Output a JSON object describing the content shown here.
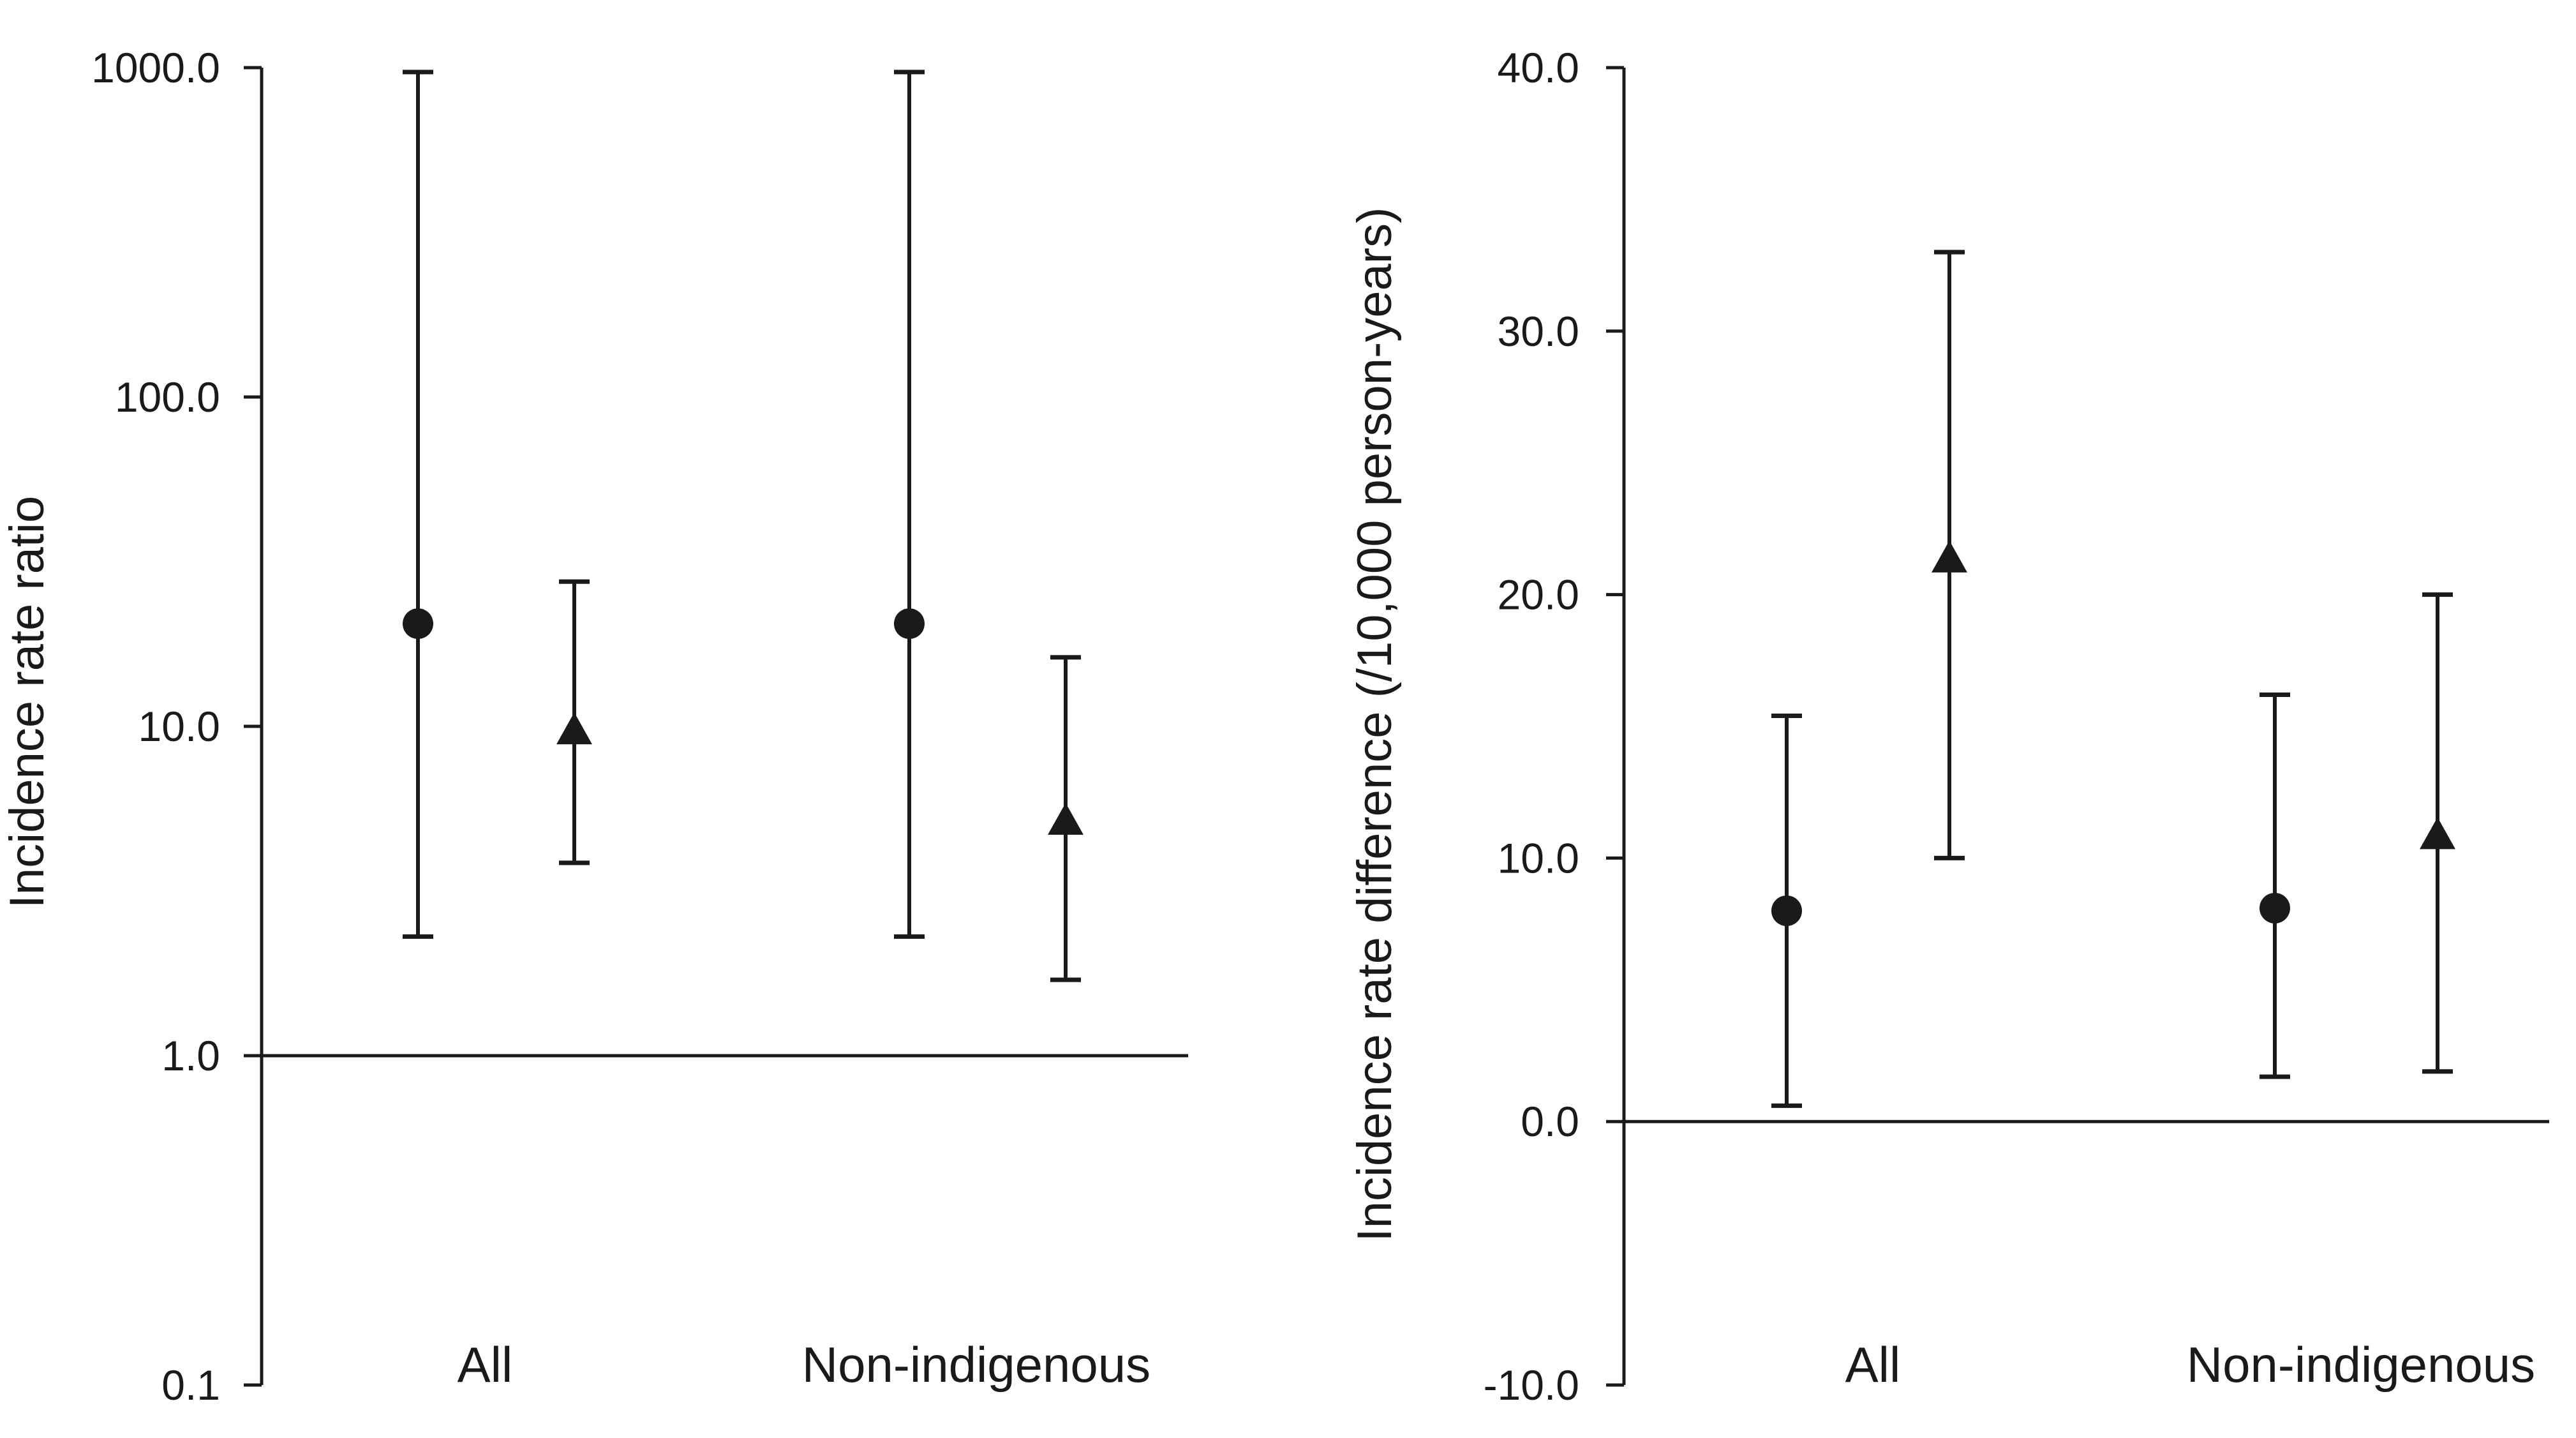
{
  "chart_data": [
    {
      "type": "scatter",
      "subtype": "point-estimate-with-error-bars",
      "ylabel": "Incidence rate ratio",
      "yscale": "log",
      "ylim": [
        0.1,
        1000
      ],
      "yticks": [
        0.1,
        1,
        10,
        100,
        1000
      ],
      "ytick_labels": [
        "0.1",
        "1.0",
        "10.0",
        "100.0",
        "1000.0"
      ],
      "reference_line": 1,
      "categories": [
        "All",
        "Non-indigenous"
      ],
      "grid": false,
      "series": [
        {
          "marker": "circle",
          "values": [
            20.5,
            20.5
          ],
          "lower": [
            2.3,
            2.3
          ],
          "upper": [
            970,
            970
          ]
        },
        {
          "marker": "triangle",
          "values": [
            9.6,
            5.1
          ],
          "lower": [
            3.85,
            1.7
          ],
          "upper": [
            27.5,
            16.2
          ]
        }
      ]
    },
    {
      "type": "scatter",
      "subtype": "point-estimate-with-error-bars",
      "ylabel": "Incidence rate difference (/10,000 person-years)",
      "yscale": "linear",
      "ylim": [
        -10,
        40
      ],
      "yticks": [
        -10,
        0,
        10,
        20,
        30,
        40
      ],
      "ytick_labels": [
        "-10.0",
        "0.0",
        "10.0",
        "20.0",
        "30.0",
        "40.0"
      ],
      "reference_line": 0,
      "categories": [
        "All",
        "Non-indigenous"
      ],
      "grid": false,
      "series": [
        {
          "marker": "circle",
          "values": [
            8.0,
            8.1
          ],
          "lower": [
            0.6,
            1.7
          ],
          "upper": [
            15.4,
            16.2
          ]
        },
        {
          "marker": "triangle",
          "values": [
            21.3,
            10.8
          ],
          "lower": [
            10.0,
            1.9
          ],
          "upper": [
            33.0,
            20.0
          ]
        }
      ]
    }
  ]
}
